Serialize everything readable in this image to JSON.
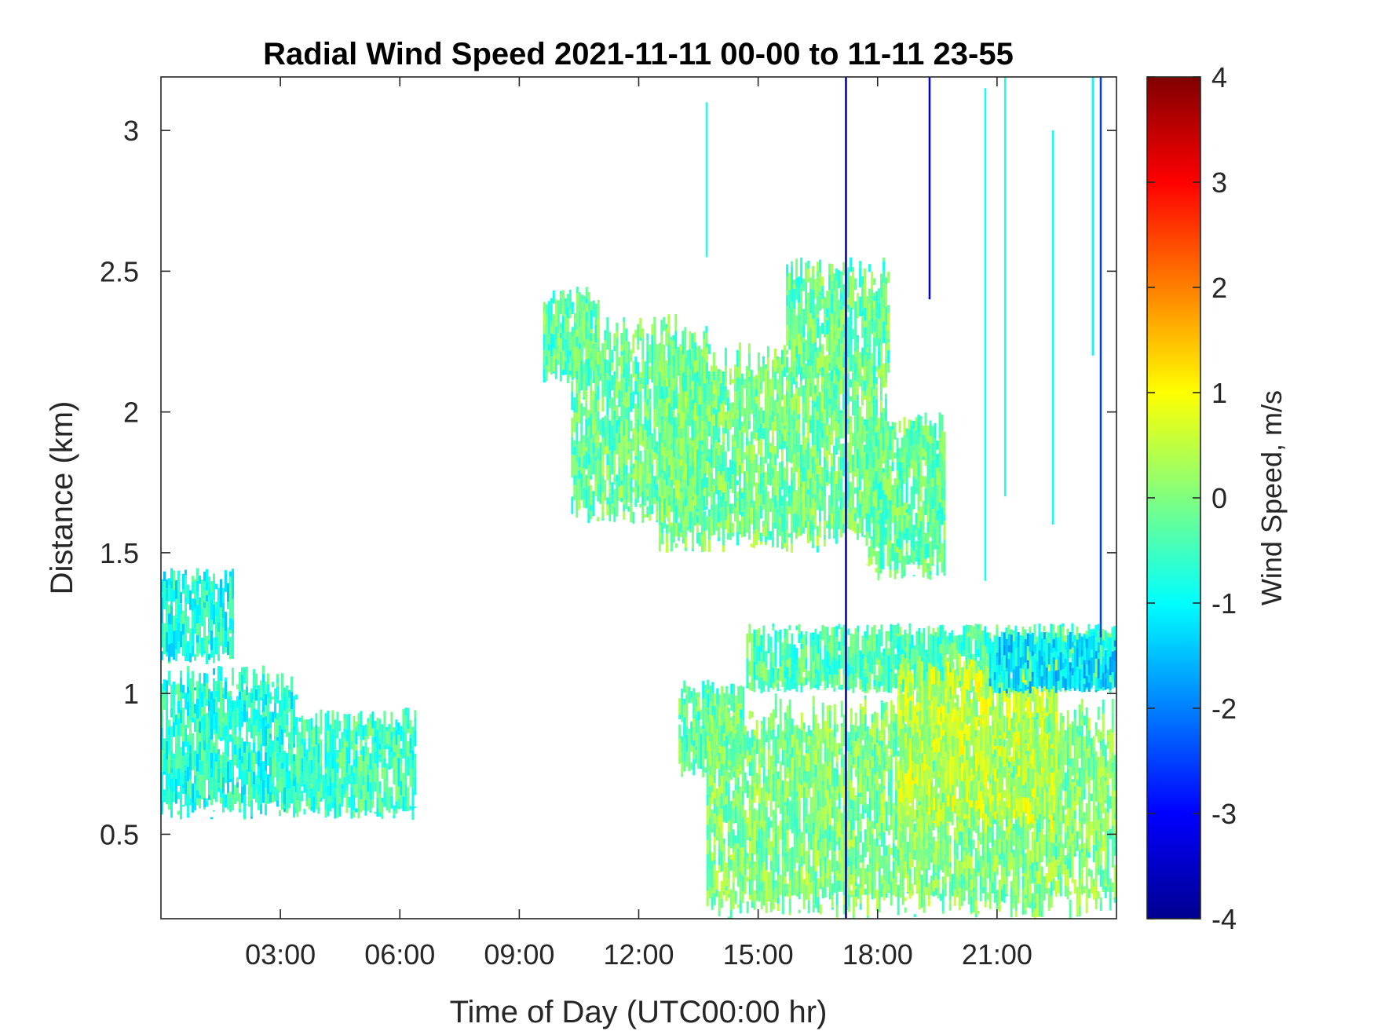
{
  "chart_data": {
    "type": "heatmap",
    "title": "Radial Wind Speed 2021-11-11 00-00 to 11-11 23-55",
    "xlabel": "Time of Day (UTC00:00 hr)",
    "ylabel": "Distance (km)",
    "colorbar_label": "Wind Speed, m/s",
    "x_units": "hours",
    "xlim": [
      0,
      24
    ],
    "ylim": [
      0.2,
      3.19
    ],
    "clim": [
      -4,
      4
    ],
    "colormap": "jet",
    "grid": false,
    "x_ticks": [
      {
        "value": 3,
        "label": "03:00"
      },
      {
        "value": 6,
        "label": "06:00"
      },
      {
        "value": 9,
        "label": "09:00"
      },
      {
        "value": 12,
        "label": "12:00"
      },
      {
        "value": 15,
        "label": "15:00"
      },
      {
        "value": 18,
        "label": "18:00"
      },
      {
        "value": 21,
        "label": "21:00"
      }
    ],
    "y_ticks": [
      {
        "value": 0.5,
        "label": "0.5"
      },
      {
        "value": 1,
        "label": "1"
      },
      {
        "value": 1.5,
        "label": "1.5"
      },
      {
        "value": 2,
        "label": "2"
      },
      {
        "value": 2.5,
        "label": "2.5"
      },
      {
        "value": 3,
        "label": "3"
      }
    ],
    "c_ticks": [
      {
        "value": 4,
        "label": "4"
      },
      {
        "value": 3,
        "label": "3"
      },
      {
        "value": 2,
        "label": "2"
      },
      {
        "value": 1,
        "label": "1"
      },
      {
        "value": 0,
        "label": "0"
      },
      {
        "value": -1,
        "label": "-1"
      },
      {
        "value": -2,
        "label": "-2"
      },
      {
        "value": -3,
        "label": "-3"
      },
      {
        "value": -4,
        "label": "-4"
      }
    ],
    "regions": [
      {
        "x0": 0.0,
        "x1": 3.4,
        "y0": 0.55,
        "y1": 1.1,
        "speed": -0.7
      },
      {
        "x0": 0.0,
        "x1": 1.8,
        "y0": 1.1,
        "y1": 1.45,
        "speed": -0.8
      },
      {
        "x0": 3.4,
        "x1": 6.4,
        "y0": 0.55,
        "y1": 0.95,
        "speed": -0.5
      },
      {
        "x0": 9.6,
        "x1": 11.0,
        "y0": 2.1,
        "y1": 2.45,
        "speed": -0.3
      },
      {
        "x0": 10.3,
        "x1": 13.7,
        "y0": 1.6,
        "y1": 2.35,
        "speed": -0.2
      },
      {
        "x0": 12.5,
        "x1": 18.2,
        "y0": 1.5,
        "y1": 2.25,
        "speed": -0.1
      },
      {
        "x0": 15.7,
        "x1": 18.3,
        "y0": 2.1,
        "y1": 2.55,
        "speed": -0.2
      },
      {
        "x0": 17.7,
        "x1": 19.7,
        "y0": 1.4,
        "y1": 2.0,
        "speed": -0.2
      },
      {
        "x0": 13.0,
        "x1": 14.6,
        "y0": 0.7,
        "y1": 1.05,
        "speed": -0.3
      },
      {
        "x0": 13.7,
        "x1": 24.0,
        "y0": 0.2,
        "y1": 1.0,
        "speed": 0.0
      },
      {
        "x0": 14.7,
        "x1": 24.0,
        "y0": 1.0,
        "y1": 1.25,
        "speed": -0.4
      },
      {
        "x0": 18.5,
        "x1": 22.5,
        "y0": 0.5,
        "y1": 1.15,
        "speed": 0.5
      },
      {
        "x0": 20.8,
        "x1": 24.0,
        "y0": 1.0,
        "y1": 1.22,
        "speed": -1.2
      }
    ],
    "streaks": [
      {
        "x": 13.7,
        "y0": 2.55,
        "y1": 3.1,
        "speed": -0.7
      },
      {
        "x": 17.2,
        "y0": 0.2,
        "y1": 3.19,
        "speed": -3.9
      },
      {
        "x": 19.3,
        "y0": 2.4,
        "y1": 3.19,
        "speed": -3.2
      },
      {
        "x": 20.7,
        "y0": 1.4,
        "y1": 3.15,
        "speed": -0.9
      },
      {
        "x": 21.2,
        "y0": 1.7,
        "y1": 3.19,
        "speed": -0.8
      },
      {
        "x": 22.4,
        "y0": 1.6,
        "y1": 3.0,
        "speed": -0.9
      },
      {
        "x": 23.4,
        "y0": 2.2,
        "y1": 3.19,
        "speed": -1.0
      },
      {
        "x": 23.6,
        "y0": 1.2,
        "y1": 3.19,
        "speed": -2.5
      }
    ]
  }
}
